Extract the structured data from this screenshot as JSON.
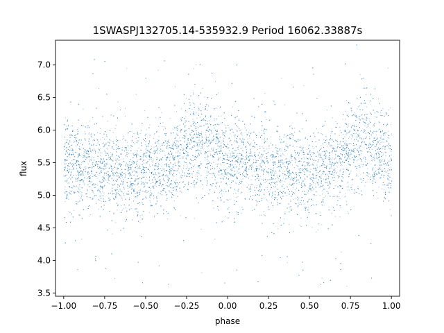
{
  "chart_data": {
    "type": "scatter",
    "title": "1SWASPJ132705.14-535932.9 Period 16062.33887s",
    "xlabel": "phase",
    "ylabel": "flux",
    "xlim": [
      -1.05,
      1.05
    ],
    "ylim": [
      3.45,
      7.38
    ],
    "x_ticks": [
      -1.0,
      -0.75,
      -0.5,
      -0.25,
      0.0,
      0.25,
      0.5,
      0.75,
      1.0
    ],
    "x_tick_labels": [
      "−1.00",
      "−0.75",
      "−0.50",
      "−0.25",
      "0.00",
      "0.25",
      "0.50",
      "0.75",
      "1.00"
    ],
    "y_ticks": [
      3.5,
      4.0,
      4.5,
      5.0,
      5.5,
      6.0,
      6.5,
      7.0
    ],
    "y_tick_labels": [
      "3.5",
      "4.0",
      "4.5",
      "5.0",
      "5.5",
      "6.0",
      "6.5",
      "7.0"
    ],
    "grid": false,
    "point_color": "#1f77b4",
    "series_profile": {
      "phase": [
        -1.0,
        -0.75,
        -0.5,
        -0.35,
        -0.2,
        -0.05,
        0.0,
        0.25,
        0.5,
        0.65,
        0.8,
        0.95,
        1.0
      ],
      "median_flux": [
        5.5,
        5.4,
        5.35,
        5.45,
        5.85,
        5.6,
        5.5,
        5.4,
        5.35,
        5.45,
        5.85,
        5.6,
        5.5
      ],
      "scatter_sd": 0.35,
      "n_points": 9000
    }
  }
}
